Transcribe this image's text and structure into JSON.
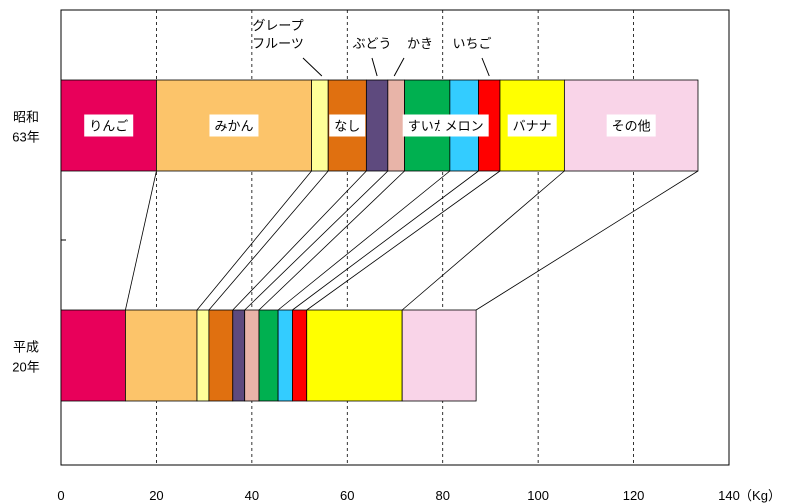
{
  "chart_data": {
    "type": "bar",
    "orientation": "horizontal",
    "stacked": true,
    "title": "",
    "xlabel": "",
    "x_unit": "（Kg）",
    "xlim": [
      0,
      140
    ],
    "x_ticks": [
      0,
      20,
      40,
      60,
      80,
      100,
      120,
      140
    ],
    "grid": "vertical dashed",
    "categories": [
      "昭和\n63年",
      "平成\n20年"
    ],
    "series": [
      {
        "name": "りんご",
        "color": "#e8005a",
        "values": [
          20.0,
          13.5
        ]
      },
      {
        "name": "みかん",
        "color": "#fcc46a",
        "values": [
          32.5,
          15.0
        ]
      },
      {
        "name": "グレープ\nフルーツ",
        "color": "#ffff99",
        "values": [
          3.5,
          2.5
        ]
      },
      {
        "name": "なし",
        "color": "#e07010",
        "values": [
          8.0,
          5.0
        ]
      },
      {
        "name": "ぶどう",
        "color": "#5e4a7e",
        "values": [
          4.5,
          2.5
        ]
      },
      {
        "name": "かき",
        "color": "#e8b4a8",
        "values": [
          3.5,
          3.0
        ]
      },
      {
        "name": "すいか",
        "color": "#00b050",
        "values": [
          9.5,
          4.0
        ]
      },
      {
        "name": "メロン",
        "color": "#33ccff",
        "values": [
          6.0,
          3.0
        ]
      },
      {
        "name": "いちご",
        "color": "#ff0000",
        "values": [
          4.5,
          3.0
        ]
      },
      {
        "name": "バナナ",
        "color": "#ffff00",
        "values": [
          13.5,
          20.0
        ]
      },
      {
        "name": "その他",
        "color": "#f9d4e8",
        "values": [
          28.0,
          15.5
        ]
      }
    ],
    "inside_labels": [
      "りんご",
      "みかん",
      "",
      "なし",
      "",
      "",
      "すいか",
      "メロン",
      "",
      "バナナ",
      "その他"
    ],
    "callout_labels": [
      "",
      "",
      "グレープ\nフルーツ",
      "",
      "ぶどう",
      "かき",
      "",
      "",
      "いちご",
      "",
      ""
    ]
  }
}
